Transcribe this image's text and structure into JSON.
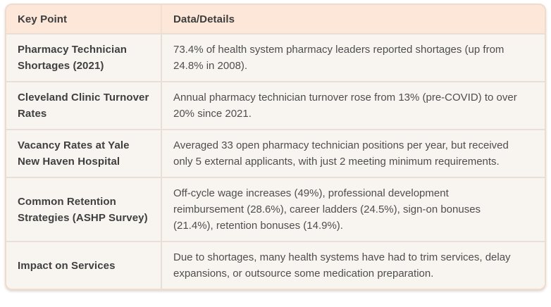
{
  "table": {
    "columns": [
      {
        "label": "Key Point"
      },
      {
        "label": "Data/Details"
      }
    ],
    "rows": [
      {
        "key": "Pharmacy Technician Shortages (2021)",
        "details": "73.4% of health system pharmacy leaders reported shortages (up from 24.8% in 2008)."
      },
      {
        "key": "Cleveland Clinic Turnover Rates",
        "details": "Annual pharmacy technician turnover rose from 13% (pre-COVID) to over 20% since 2021."
      },
      {
        "key": "Vacancy Rates at Yale New Haven Hospital",
        "details": "Averaged 33 open pharmacy technician positions per year, but received only 5 external applicants, with just 2 meeting minimum requirements."
      },
      {
        "key": "Common Retention Strategies (ASHP Survey)",
        "details": "Off-cycle wage increases (49%), professional development reimbursement (28.6%), career ladders (24.5%), sign-on bonuses (21.4%), retention bonuses (14.9%)."
      },
      {
        "key": "Impact on Services",
        "details": "Due to shortages, many health systems have had to trim services, delay expansions, or outsource some medication preparation."
      }
    ]
  },
  "colors": {
    "header_bg": "#fce7d9",
    "body_bg": "#f8f5f1",
    "border": "#f0dcca",
    "separator": "#e9dfd7",
    "key_text": "#3f3f3f",
    "details_text": "#4e4e4e"
  },
  "chart_data": {
    "type": "table",
    "columns": [
      "Key Point",
      "Data/Details"
    ],
    "rows": [
      [
        "Pharmacy Technician Shortages (2021)",
        "73.4% of health system pharmacy leaders reported shortages (up from 24.8% in 2008)."
      ],
      [
        "Cleveland Clinic Turnover Rates",
        "Annual pharmacy technician turnover rose from 13% (pre-COVID) to over 20% since 2021."
      ],
      [
        "Vacancy Rates at Yale New Haven Hospital",
        "Averaged 33 open pharmacy technician positions per year, but received only 5 external applicants, with just 2 meeting minimum requirements."
      ],
      [
        "Common Retention Strategies (ASHP Survey)",
        "Off-cycle wage increases (49%), professional development reimbursement (28.6%), career ladders (24.5%), sign-on bonuses (21.4%), retention bonuses (14.9%)."
      ],
      [
        "Impact on Services",
        "Due to shortages, many health systems have had to trim services, delay expansions, or outsource some medication preparation."
      ]
    ],
    "title": "",
    "notes": "Static two-column data table on pharmacy technician workforce shortages"
  }
}
